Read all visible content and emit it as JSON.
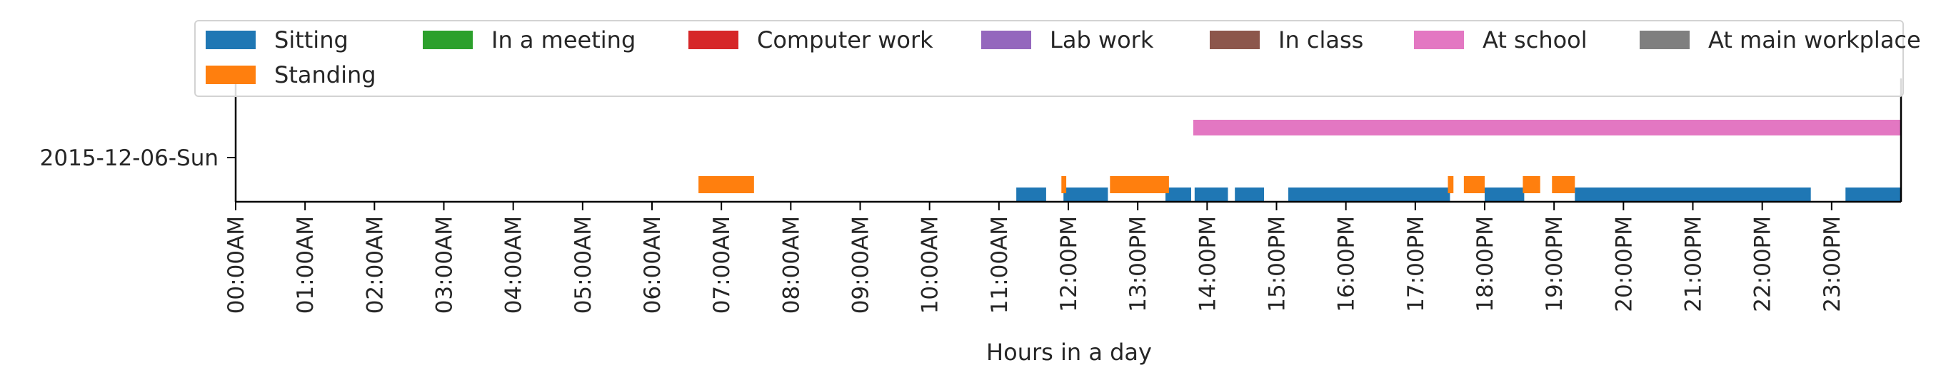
{
  "chart_data": {
    "type": "timeline",
    "title": "",
    "xlabel": "Hours in a day",
    "xlim": [
      0,
      24
    ],
    "x_ticks": [
      "00:00AM",
      "01:00AM",
      "02:00AM",
      "03:00AM",
      "04:00AM",
      "05:00AM",
      "06:00AM",
      "07:00AM",
      "08:00AM",
      "09:00AM",
      "10:00AM",
      "11:00AM",
      "12:00PM",
      "13:00PM",
      "14:00PM",
      "15:00PM",
      "16:00PM",
      "17:00PM",
      "18:00PM",
      "19:00PM",
      "20:00PM",
      "21:00PM",
      "22:00PM",
      "23:00PM"
    ],
    "categories": [
      "2015-12-06-Sun"
    ],
    "legend_position": "top",
    "series": [
      {
        "name": "Sitting",
        "color": "#1f77b4",
        "lane": 0,
        "intervals": [
          [
            11.25,
            11.68
          ],
          [
            11.93,
            12.57
          ],
          [
            13.4,
            13.77
          ],
          [
            13.82,
            14.3
          ],
          [
            14.4,
            14.82
          ],
          [
            15.17,
            17.5
          ],
          [
            18.0,
            18.57
          ],
          [
            19.3,
            22.7
          ],
          [
            23.2,
            24.0
          ]
        ]
      },
      {
        "name": "Standing",
        "color": "#ff7f0e",
        "lane": 1,
        "intervals": [
          [
            6.67,
            7.47
          ],
          [
            11.9,
            11.97
          ],
          [
            12.6,
            13.45
          ],
          [
            17.47,
            17.55
          ],
          [
            17.7,
            18.0
          ],
          [
            18.55,
            18.8
          ],
          [
            18.97,
            19.3
          ]
        ]
      },
      {
        "name": "In a meeting",
        "color": "#2ca02c",
        "lane": 2,
        "intervals": []
      },
      {
        "name": "Computer work",
        "color": "#d62728",
        "lane": 3,
        "intervals": []
      },
      {
        "name": "Lab work",
        "color": "#9467bd",
        "lane": 4,
        "intervals": []
      },
      {
        "name": "In class",
        "color": "#8c564b",
        "lane": 5,
        "intervals": []
      },
      {
        "name": "At school",
        "color": "#e377c2",
        "lane": 6,
        "intervals": [
          [
            13.8,
            24.0
          ]
        ]
      },
      {
        "name": "At main workplace",
        "color": "#7f7f7f",
        "lane": 7,
        "intervals": []
      }
    ]
  }
}
